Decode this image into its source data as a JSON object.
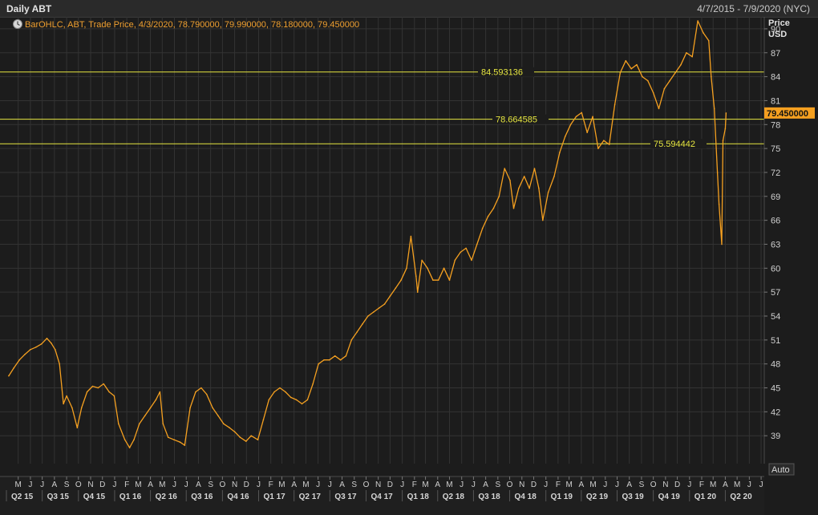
{
  "header": {
    "title": "Daily ABT",
    "date_range": "4/7/2015 - 7/9/2020 (NYC)"
  },
  "legend": {
    "text": "BarOHLC, ABT, Trade Price, 4/3/2020, 78.790000, 79.990000, 78.180000, 79.450000",
    "icon": "chart-settings-icon"
  },
  "price_axis": {
    "title_line1": "Price",
    "title_line2": "USD",
    "last_price_label": "79.450000",
    "auto_label": "Auto"
  },
  "colors": {
    "background": "#1c1c1c",
    "grid": "#333333",
    "series": "#f5a020",
    "horizontal_lines": "#e6e640",
    "price_tag": "#f5a020"
  },
  "chart_data": {
    "type": "line",
    "series": [
      {
        "name": "ABT",
        "points": [
          [
            "2015-04-07",
            46.5
          ],
          [
            "2015-04-20",
            47.5
          ],
          [
            "2015-05-04",
            48.5
          ],
          [
            "2015-05-18",
            49.2
          ],
          [
            "2015-06-01",
            49.8
          ],
          [
            "2015-06-15",
            50.1
          ],
          [
            "2015-06-29",
            50.5
          ],
          [
            "2015-07-13",
            51.2
          ],
          [
            "2015-07-24",
            50.6
          ],
          [
            "2015-08-03",
            49.8
          ],
          [
            "2015-08-14",
            48.0
          ],
          [
            "2015-08-24",
            43.0
          ],
          [
            "2015-09-01",
            44.0
          ],
          [
            "2015-09-15",
            42.5
          ],
          [
            "2015-09-28",
            40.0
          ],
          [
            "2015-10-09",
            42.5
          ],
          [
            "2015-10-23",
            44.5
          ],
          [
            "2015-11-06",
            45.2
          ],
          [
            "2015-11-20",
            45.0
          ],
          [
            "2015-12-04",
            45.5
          ],
          [
            "2015-12-18",
            44.5
          ],
          [
            "2015-12-31",
            44.0
          ],
          [
            "2016-01-11",
            40.5
          ],
          [
            "2016-01-27",
            38.5
          ],
          [
            "2016-02-08",
            37.5
          ],
          [
            "2016-02-19",
            38.5
          ],
          [
            "2016-03-04",
            40.5
          ],
          [
            "2016-03-18",
            41.5
          ],
          [
            "2016-04-01",
            42.5
          ],
          [
            "2016-04-15",
            43.5
          ],
          [
            "2016-04-25",
            44.5
          ],
          [
            "2016-05-03",
            40.5
          ],
          [
            "2016-05-16",
            38.8
          ],
          [
            "2016-05-31",
            38.5
          ],
          [
            "2016-06-15",
            38.2
          ],
          [
            "2016-06-27",
            37.8
          ],
          [
            "2016-07-11",
            42.5
          ],
          [
            "2016-07-25",
            44.5
          ],
          [
            "2016-08-08",
            45.0
          ],
          [
            "2016-08-22",
            44.2
          ],
          [
            "2016-09-06",
            42.5
          ],
          [
            "2016-09-20",
            41.5
          ],
          [
            "2016-10-04",
            40.5
          ],
          [
            "2016-10-19",
            40.0
          ],
          [
            "2016-11-01",
            39.5
          ],
          [
            "2016-11-15",
            38.8
          ],
          [
            "2016-11-30",
            38.3
          ],
          [
            "2016-12-13",
            39.0
          ],
          [
            "2016-12-30",
            38.5
          ],
          [
            "2017-01-13",
            41.0
          ],
          [
            "2017-01-27",
            43.5
          ],
          [
            "2017-02-10",
            44.5
          ],
          [
            "2017-02-24",
            45.0
          ],
          [
            "2017-03-10",
            44.5
          ],
          [
            "2017-03-24",
            43.8
          ],
          [
            "2017-04-07",
            43.5
          ],
          [
            "2017-04-21",
            43.0
          ],
          [
            "2017-05-05",
            43.5
          ],
          [
            "2017-05-19",
            45.5
          ],
          [
            "2017-06-02",
            48.0
          ],
          [
            "2017-06-16",
            48.5
          ],
          [
            "2017-06-30",
            48.5
          ],
          [
            "2017-07-14",
            49.0
          ],
          [
            "2017-07-28",
            48.5
          ],
          [
            "2017-08-11",
            49.0
          ],
          [
            "2017-08-25",
            51.0
          ],
          [
            "2017-09-08",
            52.0
          ],
          [
            "2017-09-22",
            53.0
          ],
          [
            "2017-10-06",
            54.0
          ],
          [
            "2017-10-20",
            54.5
          ],
          [
            "2017-11-03",
            55.0
          ],
          [
            "2017-11-17",
            55.5
          ],
          [
            "2017-12-01",
            56.5
          ],
          [
            "2017-12-15",
            57.5
          ],
          [
            "2017-12-29",
            58.5
          ],
          [
            "2018-01-12",
            60.0
          ],
          [
            "2018-01-23",
            64.0
          ],
          [
            "2018-02-05",
            59.0
          ],
          [
            "2018-02-09",
            57.0
          ],
          [
            "2018-02-20",
            61.0
          ],
          [
            "2018-03-06",
            60.0
          ],
          [
            "2018-03-20",
            58.5
          ],
          [
            "2018-04-03",
            58.5
          ],
          [
            "2018-04-17",
            60.0
          ],
          [
            "2018-05-01",
            58.5
          ],
          [
            "2018-05-15",
            61.0
          ],
          [
            "2018-05-29",
            62.0
          ],
          [
            "2018-06-12",
            62.5
          ],
          [
            "2018-06-26",
            61.0
          ],
          [
            "2018-07-10",
            63.0
          ],
          [
            "2018-07-24",
            65.0
          ],
          [
            "2018-08-07",
            66.5
          ],
          [
            "2018-08-21",
            67.5
          ],
          [
            "2018-09-04",
            69.0
          ],
          [
            "2018-09-18",
            72.5
          ],
          [
            "2018-10-02",
            71.0
          ],
          [
            "2018-10-11",
            67.5
          ],
          [
            "2018-10-24",
            70.0
          ],
          [
            "2018-11-07",
            71.5
          ],
          [
            "2018-11-20",
            70.0
          ],
          [
            "2018-12-03",
            72.5
          ],
          [
            "2018-12-14",
            70.0
          ],
          [
            "2018-12-24",
            66.0
          ],
          [
            "2019-01-07",
            69.5
          ],
          [
            "2019-01-22",
            71.5
          ],
          [
            "2019-02-05",
            74.5
          ],
          [
            "2019-02-19",
            76.5
          ],
          [
            "2019-03-05",
            78.0
          ],
          [
            "2019-03-19",
            79.0
          ],
          [
            "2019-04-02",
            79.5
          ],
          [
            "2019-04-16",
            77.0
          ],
          [
            "2019-04-30",
            79.0
          ],
          [
            "2019-05-14",
            75.0
          ],
          [
            "2019-05-28",
            76.0
          ],
          [
            "2019-06-11",
            75.5
          ],
          [
            "2019-06-25",
            80.5
          ],
          [
            "2019-07-09",
            84.5
          ],
          [
            "2019-07-23",
            86.0
          ],
          [
            "2019-08-06",
            85.0
          ],
          [
            "2019-08-20",
            85.5
          ],
          [
            "2019-09-03",
            84.0
          ],
          [
            "2019-09-17",
            83.5
          ],
          [
            "2019-10-01",
            82.0
          ],
          [
            "2019-10-15",
            80.0
          ],
          [
            "2019-10-29",
            82.5
          ],
          [
            "2019-11-12",
            83.5
          ],
          [
            "2019-11-26",
            84.5
          ],
          [
            "2019-12-10",
            85.5
          ],
          [
            "2019-12-24",
            87.0
          ],
          [
            "2020-01-08",
            86.5
          ],
          [
            "2020-01-22",
            91.0
          ],
          [
            "2020-02-05",
            89.5
          ],
          [
            "2020-02-19",
            88.5
          ],
          [
            "2020-02-25",
            84.0
          ],
          [
            "2020-03-04",
            80.0
          ],
          [
            "2020-03-12",
            72.0
          ],
          [
            "2020-03-16",
            68.0
          ],
          [
            "2020-03-23",
            63.0
          ],
          [
            "2020-03-26",
            76.0
          ],
          [
            "2020-04-01",
            77.5
          ],
          [
            "2020-04-03",
            79.45
          ]
        ]
      }
    ],
    "horizontal_lines": [
      84.593136,
      78.664585,
      75.594442
    ],
    "horizontal_line_labels": [
      "84.593136",
      "78.664585",
      "75.594442"
    ],
    "x_range": [
      "2015-04-01",
      "2020-07-09"
    ],
    "ylim": [
      35.5,
      91.5
    ],
    "y_ticks": [
      39,
      42,
      45,
      48,
      51,
      54,
      57,
      60,
      63,
      66,
      69,
      72,
      75,
      78,
      81,
      84,
      87,
      90
    ],
    "month_ticks": [
      [
        "2015-05",
        "M"
      ],
      [
        "2015-06",
        "J"
      ],
      [
        "2015-07",
        "J"
      ],
      [
        "2015-08",
        "A"
      ],
      [
        "2015-09",
        "S"
      ],
      [
        "2015-10",
        "O"
      ],
      [
        "2015-11",
        "N"
      ],
      [
        "2015-12",
        "D"
      ],
      [
        "2016-01",
        "J"
      ],
      [
        "2016-02",
        "F"
      ],
      [
        "2016-03",
        "M"
      ],
      [
        "2016-04",
        "A"
      ],
      [
        "2016-05",
        "M"
      ],
      [
        "2016-06",
        "J"
      ],
      [
        "2016-07",
        "J"
      ],
      [
        "2016-08",
        "A"
      ],
      [
        "2016-09",
        "S"
      ],
      [
        "2016-10",
        "O"
      ],
      [
        "2016-11",
        "N"
      ],
      [
        "2016-12",
        "D"
      ],
      [
        "2017-01",
        "J"
      ],
      [
        "2017-02",
        "F"
      ],
      [
        "2017-03",
        "M"
      ],
      [
        "2017-04",
        "A"
      ],
      [
        "2017-05",
        "M"
      ],
      [
        "2017-06",
        "J"
      ],
      [
        "2017-07",
        "J"
      ],
      [
        "2017-08",
        "A"
      ],
      [
        "2017-09",
        "S"
      ],
      [
        "2017-10",
        "O"
      ],
      [
        "2017-11",
        "N"
      ],
      [
        "2017-12",
        "D"
      ],
      [
        "2018-01",
        "J"
      ],
      [
        "2018-02",
        "F"
      ],
      [
        "2018-03",
        "M"
      ],
      [
        "2018-04",
        "A"
      ],
      [
        "2018-05",
        "M"
      ],
      [
        "2018-06",
        "J"
      ],
      [
        "2018-07",
        "J"
      ],
      [
        "2018-08",
        "A"
      ],
      [
        "2018-09",
        "S"
      ],
      [
        "2018-10",
        "O"
      ],
      [
        "2018-11",
        "N"
      ],
      [
        "2018-12",
        "D"
      ],
      [
        "2019-01",
        "J"
      ],
      [
        "2019-02",
        "F"
      ],
      [
        "2019-03",
        "M"
      ],
      [
        "2019-04",
        "A"
      ],
      [
        "2019-05",
        "M"
      ],
      [
        "2019-06",
        "J"
      ],
      [
        "2019-07",
        "J"
      ],
      [
        "2019-08",
        "A"
      ],
      [
        "2019-09",
        "S"
      ],
      [
        "2019-10",
        "O"
      ],
      [
        "2019-11",
        "N"
      ],
      [
        "2019-12",
        "D"
      ],
      [
        "2020-01",
        "J"
      ],
      [
        "2020-02",
        "F"
      ],
      [
        "2020-03",
        "M"
      ],
      [
        "2020-04",
        "A"
      ],
      [
        "2020-05",
        "M"
      ],
      [
        "2020-06",
        "J"
      ],
      [
        "2020-07",
        "J"
      ]
    ],
    "quarter_ticks": [
      [
        "2015-04",
        "Q2 15"
      ],
      [
        "2015-07",
        "Q3 15"
      ],
      [
        "2015-10",
        "Q4 15"
      ],
      [
        "2016-01",
        "Q1 16"
      ],
      [
        "2016-04",
        "Q2 16"
      ],
      [
        "2016-07",
        "Q3 16"
      ],
      [
        "2016-10",
        "Q4 16"
      ],
      [
        "2017-01",
        "Q1 17"
      ],
      [
        "2017-04",
        "Q2 17"
      ],
      [
        "2017-07",
        "Q3 17"
      ],
      [
        "2017-10",
        "Q4 17"
      ],
      [
        "2018-01",
        "Q1 18"
      ],
      [
        "2018-04",
        "Q2 18"
      ],
      [
        "2018-07",
        "Q3 18"
      ],
      [
        "2018-10",
        "Q4 18"
      ],
      [
        "2019-01",
        "Q1 19"
      ],
      [
        "2019-04",
        "Q2 19"
      ],
      [
        "2019-07",
        "Q3 19"
      ],
      [
        "2019-10",
        "Q4 19"
      ],
      [
        "2020-01",
        "Q1 20"
      ],
      [
        "2020-04",
        "Q2 20"
      ]
    ],
    "grid": true,
    "legend_position": "top-left"
  }
}
